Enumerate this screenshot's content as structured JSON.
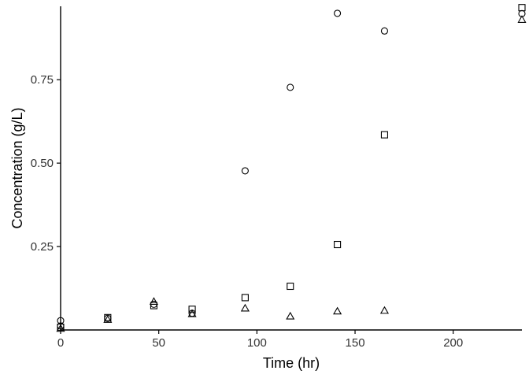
{
  "chart_data": {
    "type": "scatter",
    "title": "",
    "xlabel": "Time (hr)",
    "ylabel": "Concentration (g/L)",
    "xlim": [
      0,
      235
    ],
    "ylim": [
      0,
      0.97
    ],
    "x_ticks": [
      0,
      50,
      100,
      150,
      200
    ],
    "x_tick_labels": [
      "0",
      "50",
      "100",
      "150",
      "200"
    ],
    "y_ticks": [
      0.25,
      0.5,
      0.75
    ],
    "y_tick_labels": [
      "0.25",
      "0.50",
      "0.75"
    ],
    "grid": false,
    "legend": "none",
    "series": [
      {
        "marker": "circle",
        "points": [
          [
            0,
            0.028
          ],
          [
            0,
            0.012
          ],
          [
            24,
            0.035
          ],
          [
            47.5,
            0.077
          ],
          [
            67,
            0.05
          ],
          [
            94,
            0.477
          ],
          [
            117,
            0.727
          ],
          [
            141,
            0.949
          ],
          [
            165,
            0.896
          ],
          [
            235,
            0.948
          ]
        ]
      },
      {
        "marker": "square",
        "points": [
          [
            0,
            0.008
          ],
          [
            24,
            0.037
          ],
          [
            47.5,
            0.073
          ],
          [
            67,
            0.062
          ],
          [
            94,
            0.097
          ],
          [
            117,
            0.131
          ],
          [
            141,
            0.256
          ],
          [
            165,
            0.585
          ],
          [
            235,
            0.966
          ]
        ]
      },
      {
        "marker": "triangle",
        "points": [
          [
            0,
            0.004
          ],
          [
            24,
            0.031
          ],
          [
            47.5,
            0.085
          ],
          [
            67,
            0.048
          ],
          [
            94,
            0.065
          ],
          [
            117,
            0.041
          ],
          [
            141,
            0.056
          ],
          [
            165,
            0.058
          ],
          [
            235,
            0.93
          ]
        ]
      }
    ]
  }
}
